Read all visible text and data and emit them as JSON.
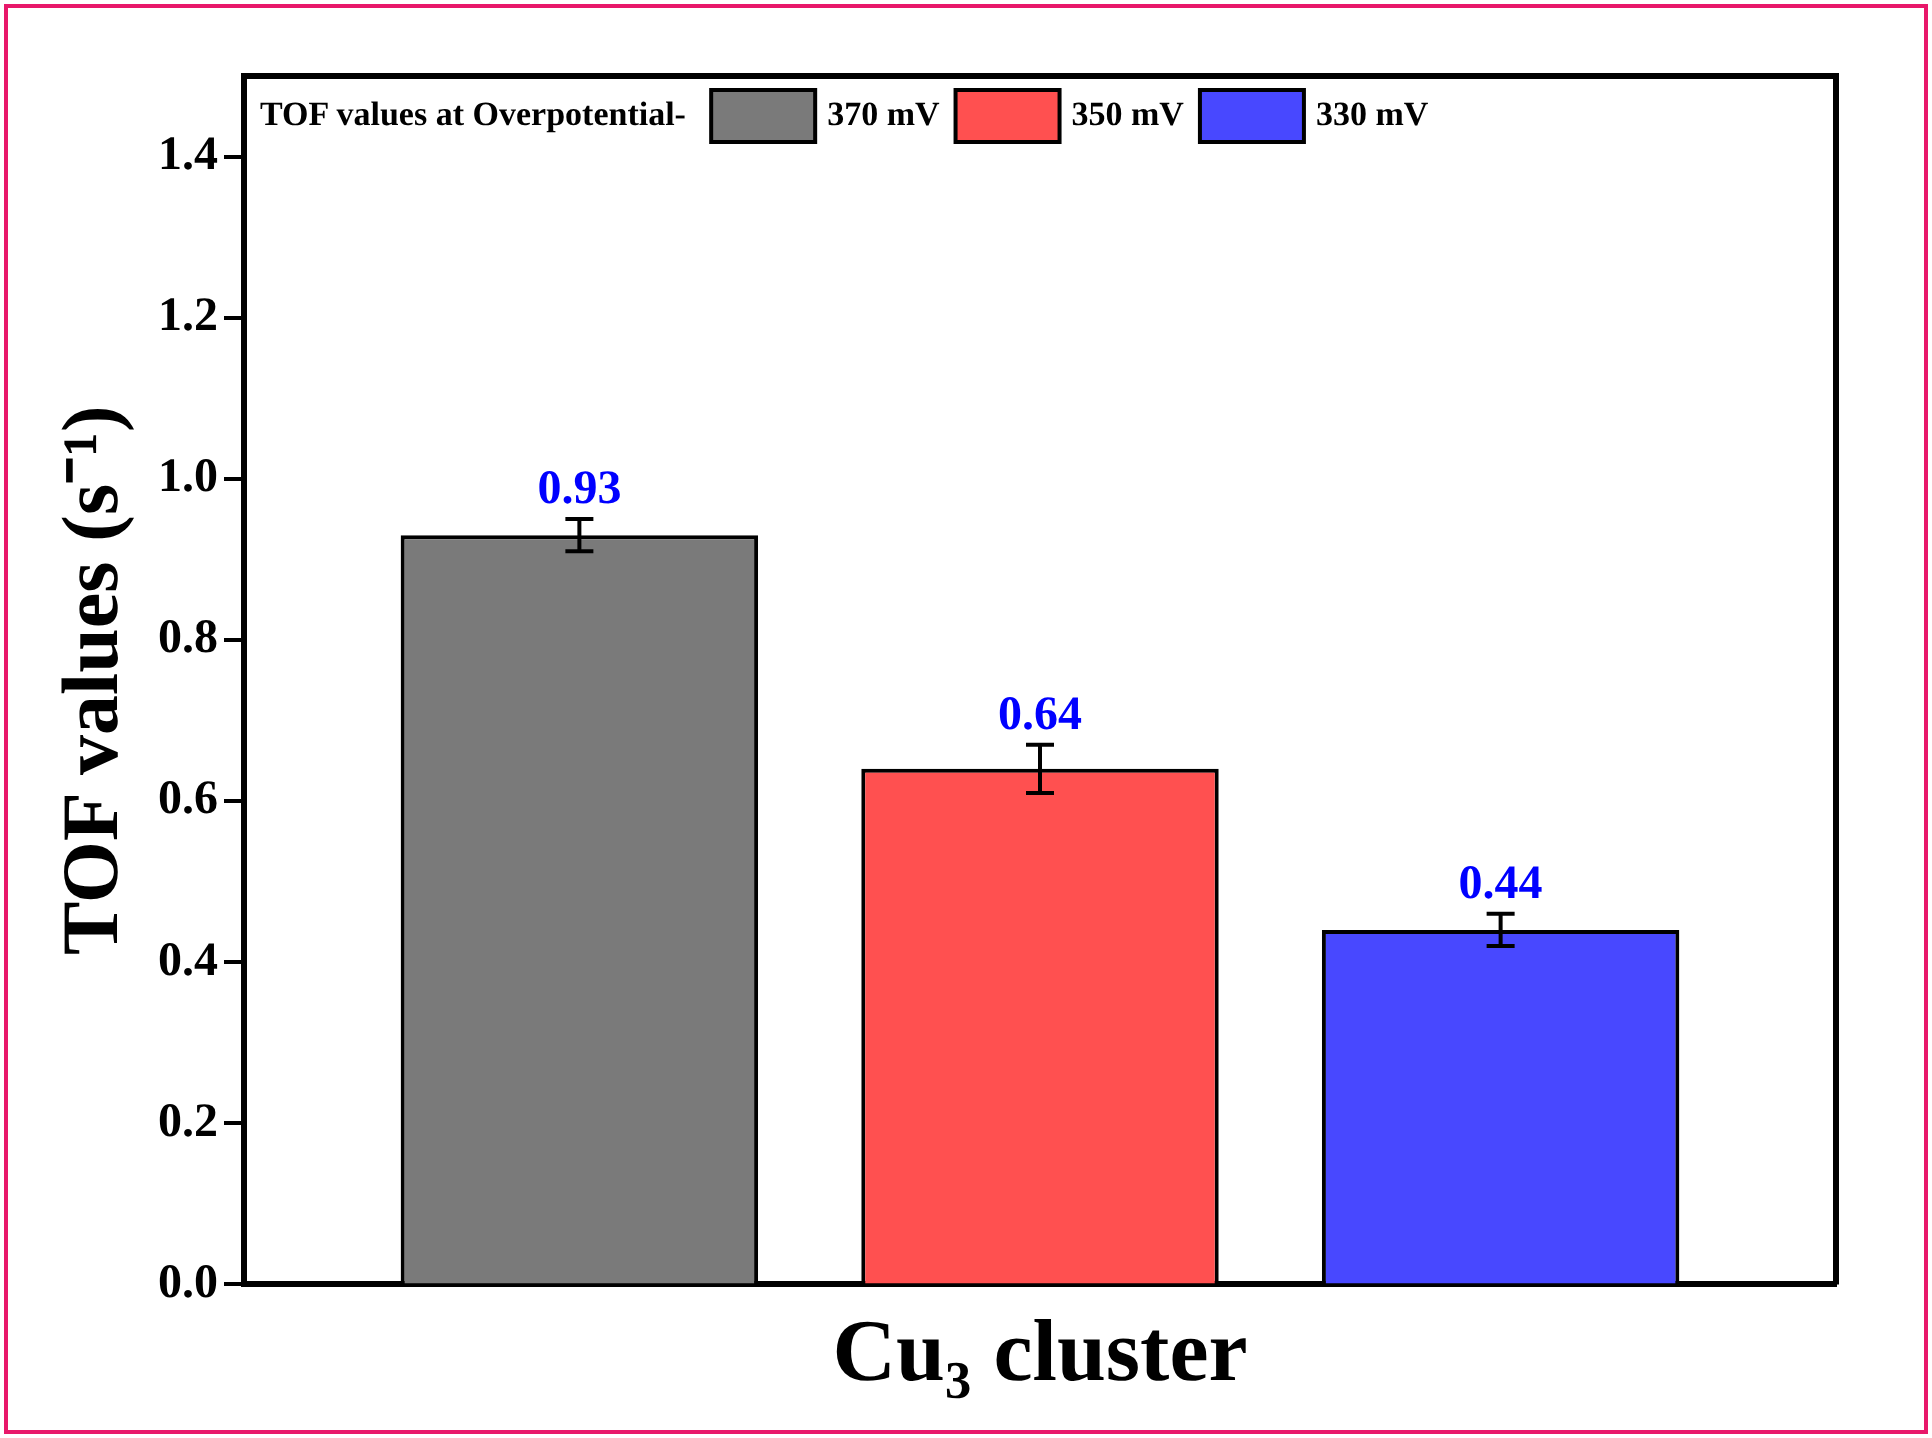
{
  "chart_data": {
    "type": "bar",
    "xlabel": "Cu₃ cluster",
    "ylabel": "TOF values (s⁻¹)",
    "legend_title": "TOF values at Overpotential-",
    "categories": [
      null
    ],
    "series": [
      {
        "name": "370 mV",
        "color": "#7a7a7a",
        "values": [
          0.93
        ],
        "errors": [
          0.02
        ]
      },
      {
        "name": "350 mV",
        "color": "#ff5050",
        "values": [
          0.64
        ],
        "errors": [
          0.03
        ]
      },
      {
        "name": "330 mV",
        "color": "#4848ff",
        "values": [
          0.44
        ],
        "errors": [
          0.02
        ]
      }
    ],
    "ylim": [
      0,
      1.5
    ],
    "yticks": [
      {
        "value": 0,
        "label": "0.0"
      },
      {
        "value": 0.2,
        "label": "0.2"
      },
      {
        "value": 0.4,
        "label": "0.4"
      },
      {
        "value": 0.6,
        "label": "0.6"
      },
      {
        "value": 0.8,
        "label": "0.8"
      },
      {
        "value": 1,
        "label": "1.0"
      },
      {
        "value": 1.2,
        "label": "1.2"
      },
      {
        "value": 1.4,
        "label": "1.4"
      }
    ],
    "tick_labels": "y",
    "data_labels": true,
    "legend": "top",
    "grid": false
  }
}
